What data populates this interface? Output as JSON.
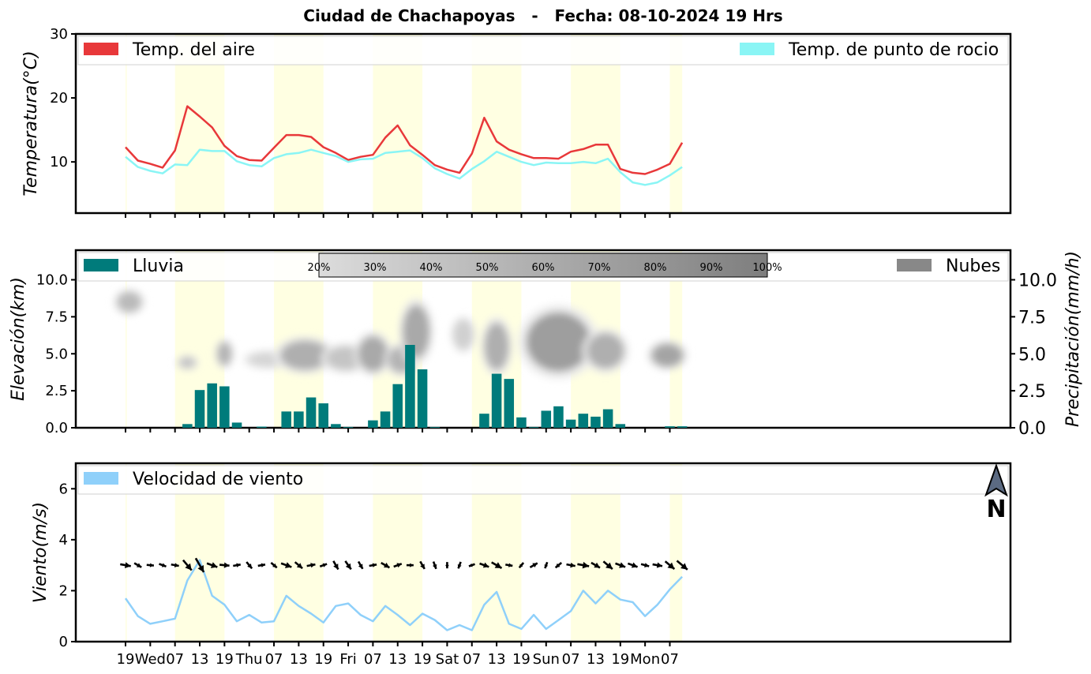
{
  "title": "Ciudad de Chachapoyas   -   Fecha: 08-10-2024 19 Hrs",
  "x_ticks": [
    "19",
    "Wed",
    "07",
    "13",
    "19",
    "Thu",
    "07",
    "13",
    "19",
    "Fri",
    "07",
    "13",
    "19",
    "Sat",
    "07",
    "13",
    "19",
    "Sun",
    "07",
    "13",
    "19",
    "Mon",
    "07"
  ],
  "daylight_bands": [
    [
      0,
      0.1
    ],
    [
      4,
      8
    ],
    [
      12,
      16
    ],
    [
      20,
      24
    ],
    [
      28,
      32
    ],
    [
      36,
      40
    ],
    [
      44,
      45
    ]
  ],
  "chart_data": [
    {
      "type": "line",
      "ylabel": "Temperatura(°C)",
      "ylim": [
        2,
        30
      ],
      "yticks": [
        10,
        20,
        30
      ],
      "legend": {
        "left": "Temp. del aire",
        "right": "Temp. de punto de rocio"
      },
      "x_step_hours": 3,
      "series": [
        {
          "name": "Temp. del aire",
          "color": "#e8383a",
          "values": [
            12.3,
            10.2,
            9.7,
            9.1,
            11.8,
            18.7,
            17.1,
            15.4,
            12.5,
            10.9,
            10.3,
            10.2,
            12.2,
            14.2,
            14.2,
            13.9,
            12.3,
            11.4,
            10.3,
            10.8,
            11.1,
            13.8,
            15.7,
            12.6,
            11.1,
            9.5,
            8.8,
            8.3,
            11.3,
            16.9,
            13.2,
            11.9,
            11.2,
            10.6,
            10.6,
            10.5,
            11.6,
            12.0,
            12.7,
            12.7,
            8.9,
            8.3,
            8.1,
            8.8,
            9.7,
            13.0
          ]
        },
        {
          "name": "Temp. de punto de rocio",
          "color": "#8af5f5",
          "values": [
            10.8,
            9.2,
            8.6,
            8.2,
            9.6,
            9.5,
            11.9,
            11.7,
            11.7,
            10.1,
            9.5,
            9.3,
            10.6,
            11.2,
            11.4,
            11.9,
            11.4,
            10.9,
            10.0,
            10.4,
            10.5,
            11.4,
            11.6,
            11.8,
            10.6,
            9.0,
            8.1,
            7.4,
            8.9,
            10.1,
            11.6,
            10.8,
            10.0,
            9.5,
            9.9,
            9.8,
            9.8,
            10.0,
            9.8,
            10.5,
            8.4,
            6.8,
            6.4,
            6.8,
            7.9,
            9.2
          ]
        }
      ]
    },
    {
      "type": "bar",
      "ylabel": "Elevación(km)",
      "ylabel_right": "Precipitación(mm/h)",
      "ylim": [
        0,
        12
      ],
      "yticks": [
        "0.0",
        "2.5",
        "5.0",
        "7.5",
        "10.0"
      ],
      "legend": {
        "left": "Lluvia",
        "right": "Nubes"
      },
      "cloud_scale": [
        "20%",
        "30%",
        "40%",
        "50%",
        "60%",
        "70%",
        "80%",
        "90%",
        "100%"
      ],
      "series": [
        {
          "name": "Lluvia",
          "color": "#007b7b",
          "values": [
            0,
            0,
            0,
            0,
            0,
            0.25,
            2.55,
            3.0,
            2.8,
            0.35,
            0,
            0.08,
            0,
            1.1,
            1.1,
            2.05,
            1.65,
            0.25,
            0.05,
            0,
            0.5,
            1.1,
            2.95,
            5.6,
            3.95,
            0.05,
            0,
            0,
            0,
            0.95,
            3.65,
            3.3,
            0.7,
            0.05,
            1.15,
            1.45,
            0.55,
            0.95,
            0.75,
            1.25,
            0.25,
            0,
            0,
            0,
            0.1,
            0.1
          ]
        }
      ],
      "clouds": [
        {
          "x": 0.3,
          "y": 8.5,
          "rx": 1.0,
          "ry": 0.7,
          "level": 0.45
        },
        {
          "x": 5.0,
          "y": 4.4,
          "rx": 0.7,
          "ry": 0.4,
          "level": 0.35
        },
        {
          "x": 8.0,
          "y": 5.0,
          "rx": 0.6,
          "ry": 0.8,
          "level": 0.5
        },
        {
          "x": 11.5,
          "y": 4.6,
          "rx": 1.6,
          "ry": 0.5,
          "level": 0.2
        },
        {
          "x": 14.5,
          "y": 4.9,
          "rx": 2.0,
          "ry": 1.0,
          "level": 0.55
        },
        {
          "x": 17.8,
          "y": 4.7,
          "rx": 1.6,
          "ry": 0.8,
          "level": 0.35
        },
        {
          "x": 20.0,
          "y": 5.0,
          "rx": 1.2,
          "ry": 1.2,
          "level": 0.6
        },
        {
          "x": 22.3,
          "y": 4.6,
          "rx": 1.1,
          "ry": 0.9,
          "level": 0.5
        },
        {
          "x": 23.5,
          "y": 6.5,
          "rx": 1.1,
          "ry": 1.8,
          "level": 0.6
        },
        {
          "x": 27.3,
          "y": 6.3,
          "rx": 0.8,
          "ry": 1.0,
          "level": 0.25
        },
        {
          "x": 30.0,
          "y": 5.5,
          "rx": 1.0,
          "ry": 1.6,
          "level": 0.55
        },
        {
          "x": 35.0,
          "y": 5.8,
          "rx": 2.6,
          "ry": 2.0,
          "level": 0.7
        },
        {
          "x": 38.8,
          "y": 5.2,
          "rx": 1.5,
          "ry": 1.2,
          "level": 0.55
        },
        {
          "x": 43.8,
          "y": 4.9,
          "rx": 1.3,
          "ry": 0.8,
          "level": 0.65
        }
      ]
    },
    {
      "type": "line",
      "ylabel": "Viento(m/s)",
      "ylim": [
        0,
        7
      ],
      "yticks": [
        0,
        2,
        4,
        6
      ],
      "legend": {
        "left": "Velocidad de viento"
      },
      "north_label": "N",
      "series": [
        {
          "name": "Velocidad de viento",
          "color": "#8fd0fa",
          "values": [
            1.7,
            1.0,
            0.7,
            0.8,
            0.9,
            2.4,
            3.2,
            1.8,
            1.45,
            0.8,
            1.05,
            0.75,
            0.8,
            1.8,
            1.4,
            1.1,
            0.75,
            1.4,
            1.5,
            1.05,
            0.8,
            1.4,
            1.05,
            0.65,
            1.1,
            0.85,
            0.45,
            0.65,
            0.45,
            1.45,
            1.95,
            0.7,
            0.5,
            1.05,
            0.5,
            0.85,
            1.2,
            2.0,
            1.5,
            2.0,
            1.65,
            1.55,
            1.0,
            1.45,
            2.05,
            2.55
          ]
        }
      ],
      "arrows_deg": [
        100,
        120,
        95,
        110,
        100,
        140,
        150,
        110,
        95,
        80,
        140,
        80,
        130,
        110,
        130,
        80,
        70,
        150,
        145,
        150,
        80,
        120,
        70,
        90,
        150,
        160,
        180,
        200,
        250,
        110,
        120,
        100,
        220,
        60,
        200,
        230,
        100,
        100,
        120,
        130,
        110,
        110,
        105,
        100,
        130,
        130
      ]
    }
  ]
}
